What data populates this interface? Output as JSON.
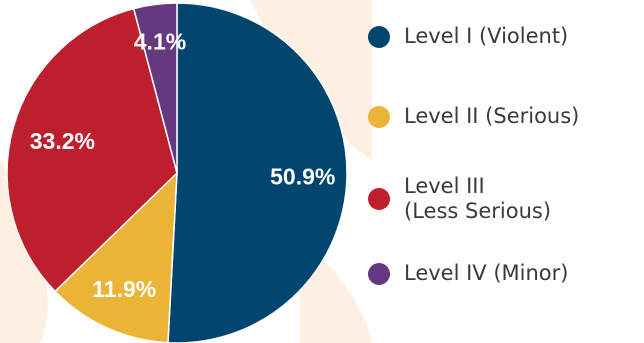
{
  "chart_data": {
    "type": "pie",
    "title": "",
    "slices": [
      {
        "label": "Level I (Violent)",
        "value": 50.9,
        "display": "50.9%",
        "color": "#00466e"
      },
      {
        "label": "Level II (Serious)",
        "value": 11.9,
        "display": "11.9%",
        "color": "#ecb436"
      },
      {
        "label": "Level III\n(Less Serious)",
        "value": 33.2,
        "display": "33.2%",
        "color": "#be1f2c"
      },
      {
        "label": "Level IV (Minor)",
        "value": 4.1,
        "display": "4.1%",
        "color": "#65397f"
      }
    ],
    "legend_position": "right",
    "start_angle": "12 o'clock",
    "direction": "clockwise"
  },
  "decor_color": "#fdf0e2"
}
